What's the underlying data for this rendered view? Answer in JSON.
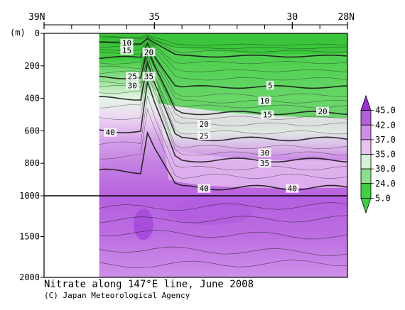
{
  "chart_data": {
    "type": "heatmap",
    "title": "Nitrate along 147°E line, June 2008",
    "credit": "(C) Japan Meteorological Agency",
    "y_unit_label": "(m)",
    "top_axis": {
      "direction": "north-to-south",
      "range_deg": [
        39,
        28
      ],
      "ticks": [
        {
          "lat": 39,
          "label": "39N"
        },
        {
          "lat": 35,
          "label": "35"
        },
        {
          "lat": 30,
          "label": "30"
        },
        {
          "lat": 28,
          "label": "28N"
        }
      ],
      "minor_tick_step_deg": 1
    },
    "left_axis": {
      "range_m": [
        0,
        2000
      ],
      "scale_break_m": 1000,
      "ticks": [
        {
          "depth": 0,
          "label": "0"
        },
        {
          "depth": 200,
          "label": "200"
        },
        {
          "depth": 400,
          "label": "400"
        },
        {
          "depth": 600,
          "label": "600"
        },
        {
          "depth": 800,
          "label": "800"
        },
        {
          "depth": 1000,
          "label": "1000"
        },
        {
          "depth": 1500,
          "label": "1500"
        },
        {
          "depth": 2000,
          "label": "2000"
        }
      ]
    },
    "data_start_lat": 37,
    "colorbar": {
      "labels": [
        "45.0",
        "42.0",
        "37.0",
        "35.0",
        "30.0",
        "24.0",
        "5.0"
      ],
      "colors": [
        "#9a2fd6",
        "#b45ee0",
        "#cf8de8",
        "#e8c3f0",
        "#d6f2d6",
        "#8ce08c",
        "#3fcf3f"
      ]
    },
    "contours": [
      {
        "label": "5",
        "lat": 30.8,
        "depth": 320
      },
      {
        "label": "10",
        "lat": 31.0,
        "depth": 415
      },
      {
        "label": "10",
        "lat": 36.0,
        "depth": 60
      },
      {
        "label": "15",
        "lat": 36.0,
        "depth": 105
      },
      {
        "label": "15",
        "lat": 30.9,
        "depth": 500
      },
      {
        "label": "20",
        "lat": 35.2,
        "depth": 115
      },
      {
        "label": "20",
        "lat": 33.2,
        "depth": 560
      },
      {
        "label": "20",
        "lat": 28.9,
        "depth": 480
      },
      {
        "label": "25",
        "lat": 35.8,
        "depth": 265
      },
      {
        "label": "25",
        "lat": 33.2,
        "depth": 630
      },
      {
        "label": "30",
        "lat": 35.8,
        "depth": 320
      },
      {
        "label": "30",
        "lat": 31.0,
        "depth": 735
      },
      {
        "label": "35",
        "lat": 35.2,
        "depth": 265
      },
      {
        "label": "35",
        "lat": 31.0,
        "depth": 800
      },
      {
        "label": "40",
        "lat": 36.6,
        "depth": 610
      },
      {
        "label": "40",
        "lat": 33.2,
        "depth": 955
      },
      {
        "label": "40",
        "lat": 30.0,
        "depth": 955
      }
    ]
  }
}
